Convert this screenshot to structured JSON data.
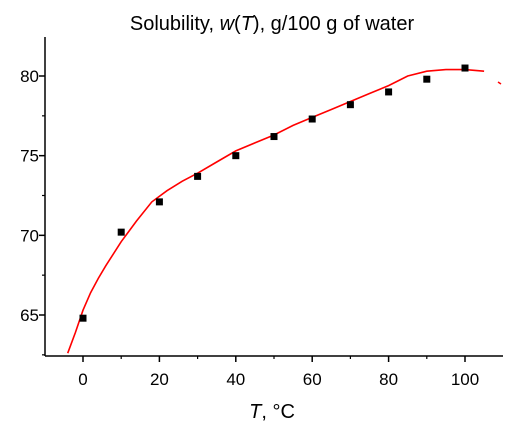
{
  "chart_data": {
    "type": "scatter",
    "title_prefix": "Solubility, ",
    "title_var": "w",
    "title_open": "(",
    "title_arg": "T",
    "title_suffix": "), g/100 g of water",
    "xlabel_var": "T",
    "xlabel_unit": ", °C",
    "ylabel": "",
    "xlim": [
      -10,
      110
    ],
    "ylim": [
      62.5,
      82.5
    ],
    "x_ticks": [
      0,
      20,
      40,
      60,
      80,
      100
    ],
    "y_ticks": [
      65,
      70,
      75,
      80
    ],
    "x_tick_labels": [
      "0",
      "20",
      "40",
      "60",
      "80",
      "100"
    ],
    "y_tick_labels": [
      "65",
      "70",
      "75",
      "80"
    ],
    "grid": false,
    "series": [
      {
        "kind": "points",
        "color": "#000000",
        "x": [
          0,
          10,
          20,
          30,
          40,
          50,
          60,
          70,
          80,
          90,
          100
        ],
        "y": [
          64.8,
          70.2,
          72.1,
          73.7,
          75.0,
          76.2,
          77.3,
          78.2,
          79.0,
          79.8,
          80.5
        ]
      },
      {
        "kind": "fit-line",
        "color": "#ff0000",
        "x": [
          -4,
          -2,
          0,
          2,
          4,
          6,
          10,
          14,
          18,
          22,
          26,
          30,
          35,
          40,
          45,
          50,
          55,
          60,
          65,
          70,
          75,
          80,
          85,
          90,
          95,
          100,
          105
        ],
        "y": [
          62.6,
          63.9,
          65.3,
          66.4,
          67.3,
          68.1,
          69.6,
          70.9,
          72.1,
          72.8,
          73.4,
          73.9,
          74.6,
          75.3,
          75.8,
          76.3,
          76.9,
          77.4,
          77.9,
          78.4,
          78.9,
          79.4,
          80.0,
          80.3,
          80.4,
          80.4,
          80.3
        ]
      }
    ]
  }
}
